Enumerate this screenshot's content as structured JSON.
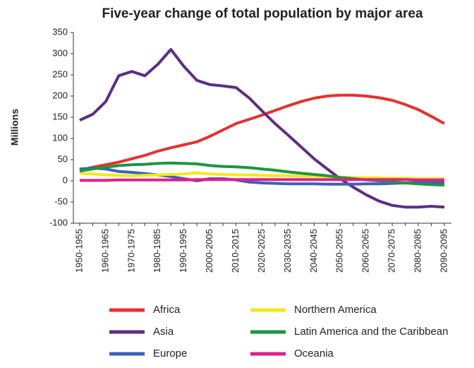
{
  "chart_data": {
    "type": "line",
    "title": "Five-year change of total population by major area",
    "y_label": "Millions",
    "categories": [
      "1950-1955",
      null,
      "1960-1965",
      null,
      "1970-1975",
      null,
      "1980-1985",
      null,
      "1990-1995",
      null,
      "2000-2005",
      null,
      "2010-2015",
      null,
      "2020-2025",
      null,
      "2030-2035",
      null,
      "2040-2045",
      null,
      "2050-2055",
      null,
      "2060-2065",
      null,
      "2070-2075",
      null,
      "2080-2085",
      null,
      "2090-2095"
    ],
    "series": [
      {
        "name": "Africa",
        "color": "#e8302e",
        "values": [
          25,
          32,
          38,
          44,
          52,
          60,
          70,
          78,
          85,
          92,
          105,
          120,
          135,
          145,
          155,
          166,
          177,
          187,
          195,
          200,
          202,
          202,
          200,
          196,
          190,
          180,
          168,
          152,
          135
        ]
      },
      {
        "name": "Asia",
        "color": "#5c2d86",
        "values": [
          143,
          157,
          187,
          248,
          258,
          248,
          275,
          310,
          270,
          237,
          227,
          224,
          220,
          196,
          165,
          135,
          108,
          80,
          52,
          28,
          5,
          -15,
          -33,
          -48,
          -58,
          -62,
          -62,
          -60,
          -62
        ]
      },
      {
        "name": "Europe",
        "color": "#3d5fbe",
        "values": [
          28,
          30,
          28,
          22,
          20,
          17,
          14,
          10,
          5,
          0,
          5,
          5,
          2,
          -3,
          -5,
          -6,
          -7,
          -7,
          -7,
          -8,
          -8,
          -8,
          -7,
          -7,
          -6,
          -5,
          -4,
          -4,
          -4
        ]
      },
      {
        "name": "Northern America",
        "color": "#f2ea1a",
        "values": [
          18,
          16,
          14,
          13,
          12,
          13,
          14,
          15,
          16,
          19,
          16,
          15,
          14,
          14,
          13,
          12,
          12,
          11,
          11,
          10,
          9,
          8,
          7,
          7,
          6,
          6,
          5,
          5,
          5
        ]
      },
      {
        "name": "Latin America and the Caribbean",
        "color": "#1a9641",
        "values": [
          23,
          28,
          32,
          36,
          38,
          39,
          41,
          42,
          41,
          40,
          36,
          34,
          33,
          31,
          28,
          25,
          21,
          18,
          15,
          12,
          8,
          5,
          2,
          0,
          -3,
          -5,
          -7,
          -9,
          -10
        ]
      },
      {
        "name": "Oceania",
        "color": "#e21e8a",
        "values": [
          1,
          1,
          1,
          2,
          2,
          2,
          2,
          2,
          2,
          3,
          3,
          3,
          3,
          3,
          3,
          3,
          3,
          3,
          3,
          3,
          3,
          3,
          3,
          3,
          3,
          3,
          2,
          2,
          2
        ]
      }
    ],
    "ylim": [
      -100,
      350
    ],
    "yticks": [
      -100,
      -50,
      0,
      50,
      100,
      150,
      200,
      250,
      300,
      350
    ]
  }
}
